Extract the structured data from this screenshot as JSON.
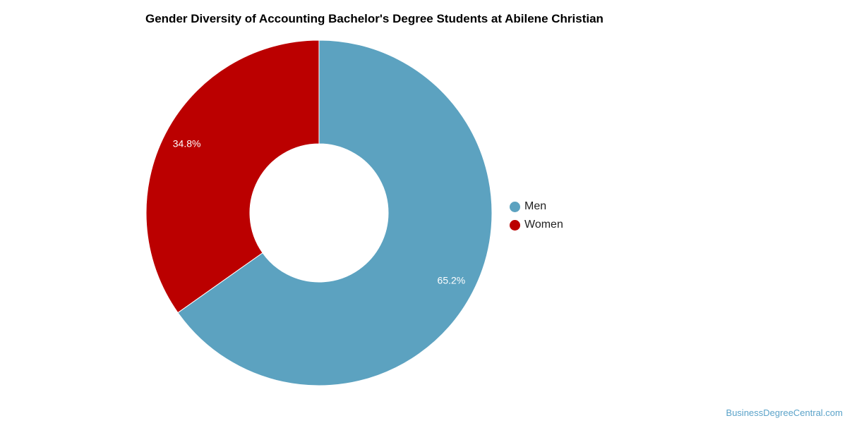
{
  "chart_data": {
    "type": "pie",
    "title": "Gender Diversity of Accounting Bachelor's Degree Students at Abilene Christian",
    "categories": [
      "Men",
      "Women"
    ],
    "values": [
      65.2,
      34.8
    ],
    "value_labels": [
      "65.2%",
      "34.8%"
    ],
    "colors": [
      "#5ca2c0",
      "#bb0000"
    ],
    "donut": true,
    "legend_placement": "right"
  },
  "watermark": "BusinessDegreeCentral.com"
}
